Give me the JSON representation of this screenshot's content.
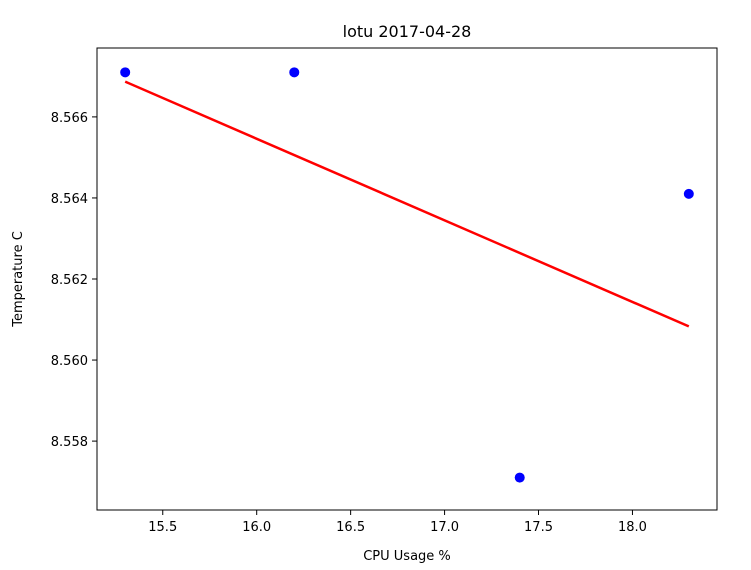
{
  "chart_data": {
    "type": "scatter",
    "title": "lotu 2017-04-28",
    "xlabel": "CPU Usage %",
    "ylabel": "Temperature C",
    "xlim": [
      15.15,
      18.45
    ],
    "ylim": [
      8.5563,
      8.5677
    ],
    "xticks": [
      {
        "value": 15.5,
        "label": "15.5"
      },
      {
        "value": 16.0,
        "label": "16.0"
      },
      {
        "value": 16.5,
        "label": "16.5"
      },
      {
        "value": 17.0,
        "label": "17.0"
      },
      {
        "value": 17.5,
        "label": "17.5"
      },
      {
        "value": 18.0,
        "label": "18.0"
      }
    ],
    "yticks": [
      {
        "value": 8.558,
        "label": "8.558"
      },
      {
        "value": 8.56,
        "label": "8.560"
      },
      {
        "value": 8.562,
        "label": "8.562"
      },
      {
        "value": 8.564,
        "label": "8.564"
      },
      {
        "value": 8.566,
        "label": "8.566"
      }
    ],
    "grid": false,
    "series": [
      {
        "kind": "points",
        "color": "#0000ff",
        "points": [
          {
            "x": 15.3,
            "y": 8.5671
          },
          {
            "x": 16.2,
            "y": 8.5671
          },
          {
            "x": 17.4,
            "y": 8.5571
          },
          {
            "x": 18.3,
            "y": 8.5641
          }
        ]
      },
      {
        "kind": "fit-line",
        "color": "#ff0000",
        "points": [
          {
            "x": 15.3,
            "y": 8.56687
          },
          {
            "x": 18.3,
            "y": 8.56083
          }
        ]
      }
    ]
  }
}
